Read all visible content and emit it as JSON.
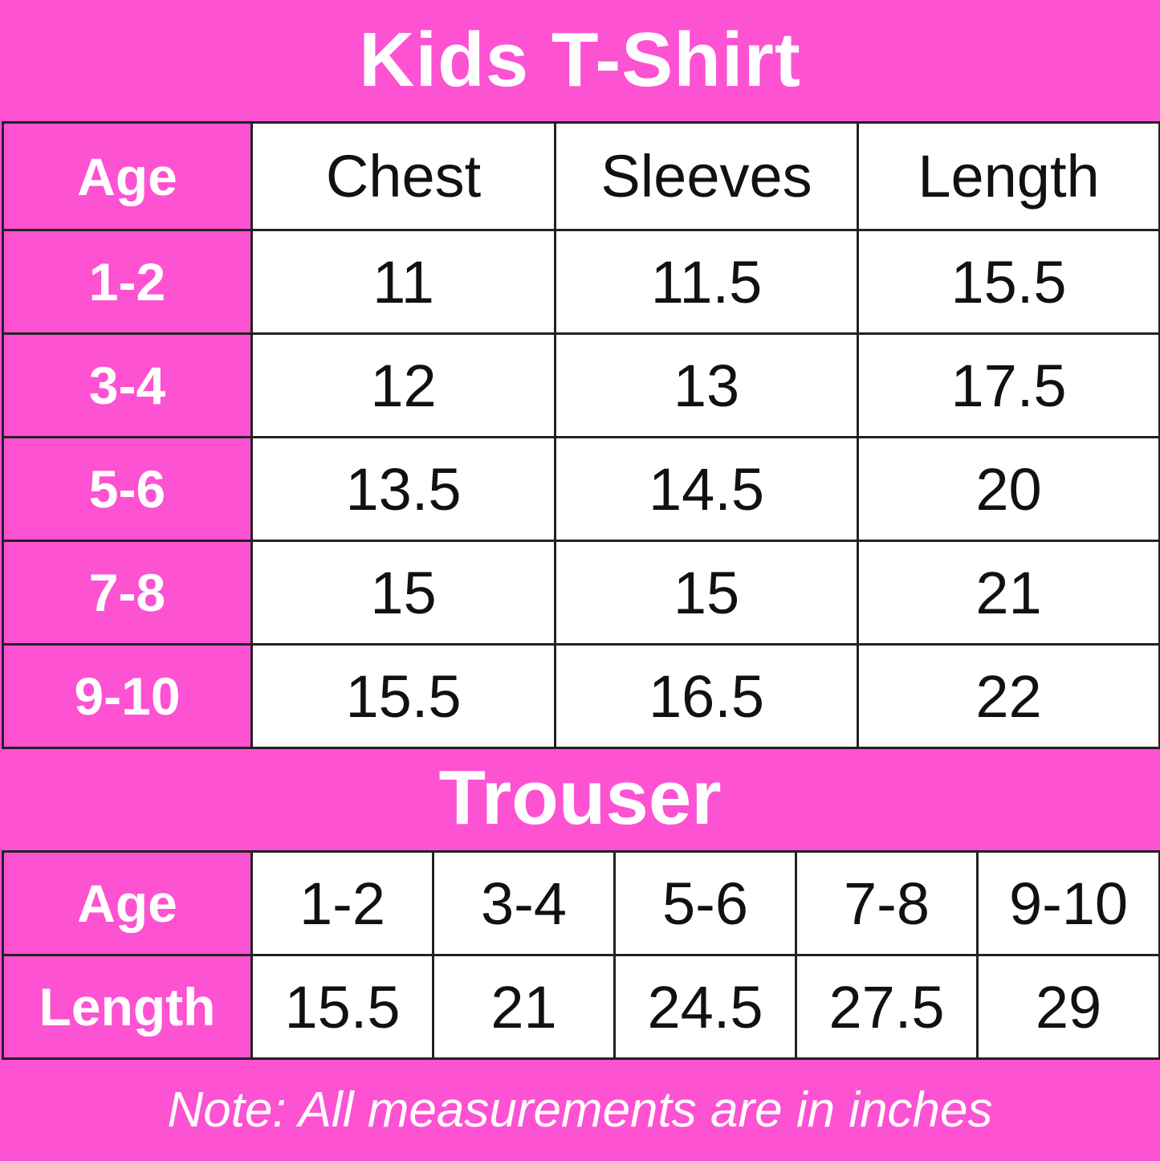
{
  "title": "Kids T-Shirt",
  "tshirt": {
    "headers": [
      "Age",
      "Chest",
      "Sleeves",
      "Length"
    ],
    "rows": [
      [
        "1-2",
        "11",
        "11.5",
        "15.5"
      ],
      [
        "3-4",
        "12",
        "13",
        "17.5"
      ],
      [
        "5-6",
        "13.5",
        "14.5",
        "20"
      ],
      [
        "7-8",
        "15",
        "15",
        "21"
      ],
      [
        "9-10",
        "15.5",
        "16.5",
        "22"
      ]
    ]
  },
  "trouser_title": "Trouser",
  "trouser": {
    "age_label": "Age",
    "ages": [
      "1-2",
      "3-4",
      "5-6",
      "7-8",
      "9-10"
    ],
    "length_label": "Length",
    "lengths": [
      "15.5",
      "21",
      "24.5",
      "27.5",
      "29"
    ]
  },
  "note": "Note: All measurements are in inches",
  "colors": {
    "accent": "#fd52d2",
    "border": "#222222"
  }
}
